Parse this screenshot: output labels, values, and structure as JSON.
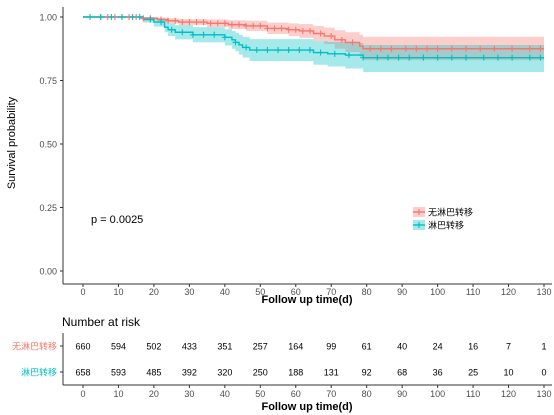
{
  "chart_data": [
    {
      "type": "survival",
      "xlabel": "Follow up time(d)",
      "ylabel": "Survival probability",
      "xlim": [
        0,
        130
      ],
      "ylim": [
        0,
        1
      ],
      "x_ticks": [
        0,
        10,
        20,
        30,
        40,
        50,
        60,
        70,
        80,
        90,
        100,
        110,
        120,
        130
      ],
      "y_ticks": [
        "0.00",
        "0.25",
        "0.50",
        "0.75",
        "1.00"
      ],
      "grid": false,
      "pvalue_text": "p = 0.0025",
      "legend_position": "right",
      "series": [
        {
          "name": "无淋巴转移",
          "color": "#F8766D",
          "steps": [
            [
              0,
              1.0
            ],
            [
              17,
              0.995
            ],
            [
              21,
              0.99
            ],
            [
              24,
              0.985
            ],
            [
              27,
              0.98
            ],
            [
              35,
              0.975
            ],
            [
              41,
              0.97
            ],
            [
              46,
              0.965
            ],
            [
              52,
              0.955
            ],
            [
              58,
              0.95
            ],
            [
              61,
              0.945
            ],
            [
              65,
              0.935
            ],
            [
              68,
              0.925
            ],
            [
              71,
              0.91
            ],
            [
              74,
              0.9
            ],
            [
              78,
              0.885
            ],
            [
              79,
              0.875
            ],
            [
              130,
              0.875
            ]
          ],
          "lower": [
            [
              0,
              1.0
            ],
            [
              17,
              0.99
            ],
            [
              21,
              0.982
            ],
            [
              24,
              0.975
            ],
            [
              27,
              0.968
            ],
            [
              35,
              0.96
            ],
            [
              41,
              0.953
            ],
            [
              46,
              0.945
            ],
            [
              52,
              0.933
            ],
            [
              58,
              0.925
            ],
            [
              61,
              0.918
            ],
            [
              65,
              0.905
            ],
            [
              68,
              0.893
            ],
            [
              71,
              0.875
            ],
            [
              74,
              0.862
            ],
            [
              78,
              0.843
            ],
            [
              79,
              0.83
            ],
            [
              130,
              0.83
            ]
          ],
          "upper": [
            [
              0,
              1.0
            ],
            [
              17,
              1.0
            ],
            [
              21,
              0.998
            ],
            [
              24,
              0.995
            ],
            [
              27,
              0.992
            ],
            [
              35,
              0.99
            ],
            [
              41,
              0.987
            ],
            [
              46,
              0.985
            ],
            [
              52,
              0.978
            ],
            [
              58,
              0.975
            ],
            [
              61,
              0.972
            ],
            [
              65,
              0.965
            ],
            [
              68,
              0.958
            ],
            [
              71,
              0.948
            ],
            [
              74,
              0.94
            ],
            [
              78,
              0.93
            ],
            [
              79,
              0.922
            ],
            [
              130,
              0.922
            ]
          ],
          "censor_x": [
            5,
            7,
            9,
            11,
            13,
            15,
            17,
            19,
            22,
            24,
            26,
            28,
            30,
            32,
            34,
            36,
            38,
            40,
            42,
            44,
            46,
            48,
            50,
            52,
            54,
            56,
            58,
            60,
            62,
            64,
            67,
            70,
            73,
            76,
            81,
            84,
            87,
            91,
            94,
            97,
            100,
            104,
            108,
            112,
            116,
            121,
            126,
            129
          ]
        },
        {
          "name": "淋巴转移",
          "color": "#00BFC4",
          "steps": [
            [
              0,
              1.0
            ],
            [
              17,
              0.99
            ],
            [
              20,
              0.98
            ],
            [
              23,
              0.96
            ],
            [
              24,
              0.95
            ],
            [
              26,
              0.94
            ],
            [
              31,
              0.93
            ],
            [
              40,
              0.92
            ],
            [
              42,
              0.91
            ],
            [
              43,
              0.9
            ],
            [
              44,
              0.89
            ],
            [
              45,
              0.88
            ],
            [
              47,
              0.87
            ],
            [
              65,
              0.86
            ],
            [
              69,
              0.855
            ],
            [
              74,
              0.85
            ],
            [
              79,
              0.84
            ],
            [
              130,
              0.84
            ]
          ],
          "lower": [
            [
              0,
              1.0
            ],
            [
              17,
              0.978
            ],
            [
              20,
              0.962
            ],
            [
              23,
              0.94
            ],
            [
              24,
              0.925
            ],
            [
              26,
              0.912
            ],
            [
              31,
              0.9
            ],
            [
              40,
              0.888
            ],
            [
              42,
              0.875
            ],
            [
              43,
              0.865
            ],
            [
              44,
              0.852
            ],
            [
              45,
              0.84
            ],
            [
              47,
              0.827
            ],
            [
              65,
              0.812
            ],
            [
              69,
              0.805
            ],
            [
              74,
              0.797
            ],
            [
              79,
              0.783
            ],
            [
              130,
              0.783
            ]
          ],
          "upper": [
            [
              0,
              1.0
            ],
            [
              17,
              1.0
            ],
            [
              20,
              0.995
            ],
            [
              23,
              0.982
            ],
            [
              24,
              0.975
            ],
            [
              26,
              0.968
            ],
            [
              31,
              0.96
            ],
            [
              40,
              0.952
            ],
            [
              42,
              0.945
            ],
            [
              43,
              0.938
            ],
            [
              44,
              0.93
            ],
            [
              45,
              0.922
            ],
            [
              47,
              0.913
            ],
            [
              65,
              0.905
            ],
            [
              69,
              0.902
            ],
            [
              74,
              0.898
            ],
            [
              79,
              0.89
            ],
            [
              130,
              0.89
            ]
          ],
          "censor_x": [
            2,
            5,
            8,
            11,
            14,
            16,
            19,
            22,
            25,
            28,
            31,
            34,
            37,
            40,
            43,
            46,
            49,
            52,
            55,
            58,
            61,
            64,
            67,
            71,
            75,
            79,
            83,
            86,
            89,
            92,
            96,
            100,
            104,
            108,
            113,
            117,
            121,
            126,
            129
          ]
        }
      ]
    },
    {
      "type": "table",
      "title": "Number at risk",
      "xlabel": "Follow up time(d)",
      "x_ticks": [
        0,
        10,
        20,
        30,
        40,
        50,
        60,
        70,
        80,
        90,
        100,
        110,
        120,
        130
      ],
      "rows": [
        {
          "name": "无淋巴转移",
          "color": "#F8766D",
          "values": [
            660,
            594,
            502,
            433,
            351,
            257,
            164,
            99,
            61,
            40,
            24,
            16,
            7,
            1
          ]
        },
        {
          "name": "淋巴转移",
          "color": "#00BFC4",
          "values": [
            658,
            593,
            485,
            392,
            320,
            250,
            188,
            131,
            92,
            68,
            36,
            25,
            10,
            0
          ]
        }
      ]
    }
  ]
}
